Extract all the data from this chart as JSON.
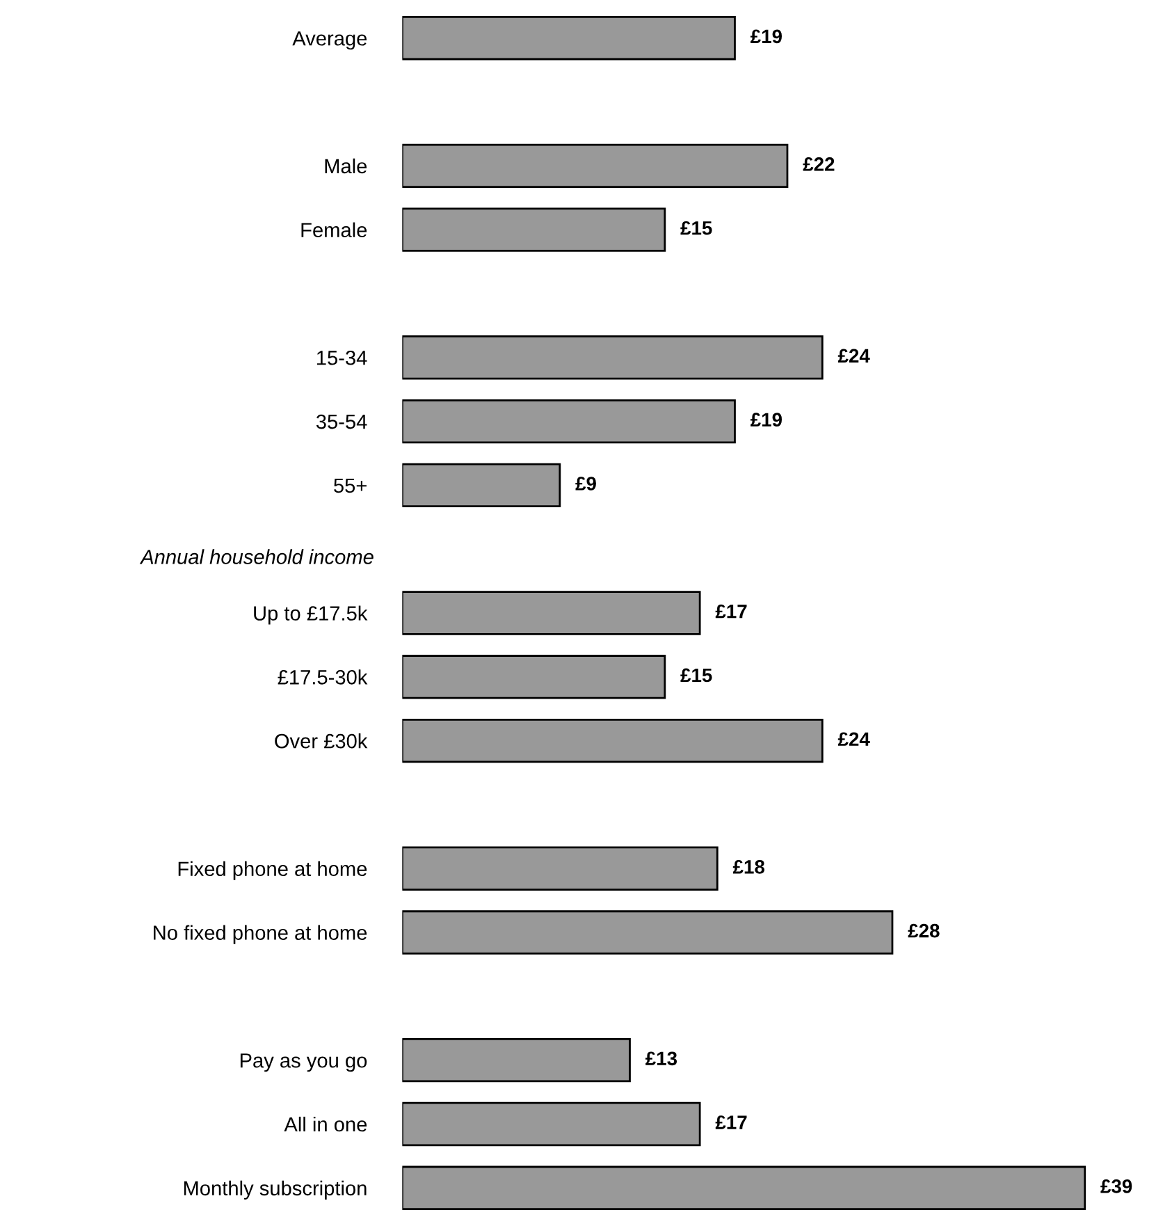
{
  "chart_data": {
    "type": "bar",
    "orientation": "horizontal",
    "categories": [
      "Average",
      null,
      "Male",
      "Female",
      null,
      "15-34",
      "35-54",
      "55+",
      null,
      "Up to £17.5k",
      "£17.5-30k",
      "Over £30k",
      null,
      "Fixed phone at home",
      "No fixed phone at home",
      null,
      "Pay as you go",
      "All in one",
      "Monthly subscription"
    ],
    "values": [
      19,
      null,
      22,
      15,
      null,
      24,
      19,
      9,
      null,
      17,
      15,
      24,
      null,
      18,
      28,
      null,
      13,
      17,
      39
    ],
    "value_labels": [
      "£19",
      null,
      "£22",
      "£15",
      null,
      "£24",
      "£19",
      "£9",
      null,
      "£17",
      "£15",
      "£24",
      null,
      "£18",
      "£28",
      null,
      "£13",
      "£17",
      "£39"
    ],
    "color": "#999999",
    "grid": false,
    "legend": false,
    "annotations": [
      "Annual household income"
    ]
  }
}
